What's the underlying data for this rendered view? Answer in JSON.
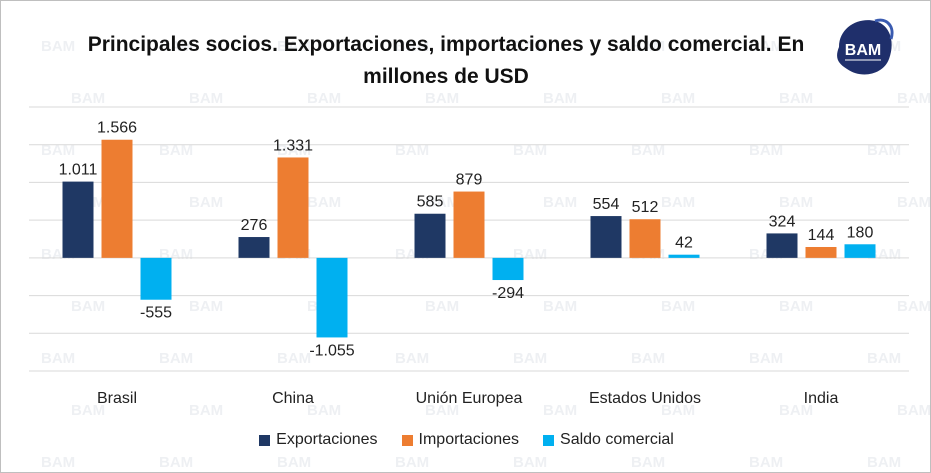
{
  "logo_text": "BAM",
  "watermark_text": "BAM",
  "chart_data": {
    "type": "bar",
    "title": "Principales socios. Exportaciones, importaciones y saldo comercial. En millones de USD",
    "categories": [
      "Brasil",
      "China",
      "Unión Europea",
      "Estados Unidos",
      "India"
    ],
    "series": [
      {
        "name": "Exportaciones",
        "color": "#1f3864",
        "values": [
          1011,
          276,
          585,
          554,
          324
        ],
        "labels": [
          "1.011",
          "276",
          "585",
          "554",
          "324"
        ]
      },
      {
        "name": "Importaciones",
        "color": "#ed7d31",
        "values": [
          1566,
          1331,
          879,
          512,
          144
        ],
        "labels": [
          "1.566",
          "1.331",
          "879",
          "512",
          "144"
        ]
      },
      {
        "name": "Saldo comercial",
        "color": "#00b0f0",
        "values": [
          -555,
          -1055,
          -294,
          42,
          180
        ],
        "labels": [
          "-555",
          "-1.055",
          "-294",
          "42",
          "180"
        ]
      }
    ],
    "ylim": [
      -1500,
      2000
    ],
    "grid": true,
    "legend_position": "bottom"
  }
}
